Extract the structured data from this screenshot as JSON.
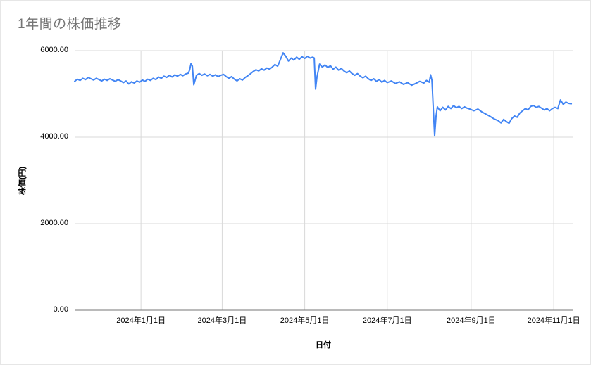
{
  "page": {
    "title": "1年間の株価推移"
  },
  "chart_data": {
    "type": "line",
    "title": "1年間の株価推移",
    "xlabel": "日付",
    "ylabel": "株価(円)",
    "ylim": [
      0,
      6000
    ],
    "y_ticks": [
      0,
      2000,
      4000,
      6000
    ],
    "y_tick_labels": [
      "0.00",
      "2000.00",
      "4000.00",
      "6000.00"
    ],
    "x_range": [
      0,
      368
    ],
    "x_ticks": [
      49,
      109,
      170,
      231,
      293,
      354
    ],
    "x_tick_labels": [
      "2024年1月1日",
      "2024年3月1日",
      "2024年5月1日",
      "2024年7月1日",
      "2024年9月1日",
      "2024年11月1日"
    ],
    "grid": true,
    "legend": "none",
    "line_color": "#4285f4",
    "grid_color": "#d9d9d9",
    "baseline_color": "#757575",
    "series": [
      {
        "name": "株価",
        "points": [
          [
            0,
            5290
          ],
          [
            2,
            5340
          ],
          [
            4,
            5310
          ],
          [
            6,
            5360
          ],
          [
            8,
            5330
          ],
          [
            10,
            5380
          ],
          [
            12,
            5350
          ],
          [
            14,
            5320
          ],
          [
            16,
            5360
          ],
          [
            18,
            5330
          ],
          [
            20,
            5300
          ],
          [
            22,
            5340
          ],
          [
            24,
            5310
          ],
          [
            26,
            5350
          ],
          [
            28,
            5320
          ],
          [
            30,
            5290
          ],
          [
            32,
            5330
          ],
          [
            34,
            5300
          ],
          [
            36,
            5260
          ],
          [
            38,
            5300
          ],
          [
            40,
            5230
          ],
          [
            42,
            5280
          ],
          [
            44,
            5250
          ],
          [
            46,
            5300
          ],
          [
            48,
            5270
          ],
          [
            50,
            5320
          ],
          [
            52,
            5290
          ],
          [
            54,
            5340
          ],
          [
            56,
            5310
          ],
          [
            58,
            5360
          ],
          [
            60,
            5330
          ],
          [
            62,
            5390
          ],
          [
            64,
            5360
          ],
          [
            66,
            5410
          ],
          [
            68,
            5380
          ],
          [
            70,
            5430
          ],
          [
            72,
            5390
          ],
          [
            74,
            5440
          ],
          [
            76,
            5410
          ],
          [
            78,
            5450
          ],
          [
            80,
            5420
          ],
          [
            82,
            5460
          ],
          [
            84,
            5480
          ],
          [
            85,
            5560
          ],
          [
            86,
            5700
          ],
          [
            87,
            5640
          ],
          [
            88,
            5210
          ],
          [
            90,
            5430
          ],
          [
            92,
            5470
          ],
          [
            94,
            5430
          ],
          [
            96,
            5460
          ],
          [
            98,
            5420
          ],
          [
            100,
            5450
          ],
          [
            102,
            5410
          ],
          [
            104,
            5440
          ],
          [
            106,
            5400
          ],
          [
            108,
            5430
          ],
          [
            110,
            5450
          ],
          [
            112,
            5400
          ],
          [
            114,
            5360
          ],
          [
            116,
            5400
          ],
          [
            118,
            5340
          ],
          [
            120,
            5300
          ],
          [
            122,
            5350
          ],
          [
            124,
            5320
          ],
          [
            126,
            5380
          ],
          [
            128,
            5420
          ],
          [
            130,
            5470
          ],
          [
            132,
            5520
          ],
          [
            134,
            5560
          ],
          [
            136,
            5530
          ],
          [
            138,
            5580
          ],
          [
            140,
            5550
          ],
          [
            142,
            5600
          ],
          [
            144,
            5570
          ],
          [
            146,
            5620
          ],
          [
            148,
            5680
          ],
          [
            150,
            5640
          ],
          [
            152,
            5790
          ],
          [
            154,
            5950
          ],
          [
            156,
            5870
          ],
          [
            158,
            5760
          ],
          [
            160,
            5830
          ],
          [
            162,
            5780
          ],
          [
            164,
            5850
          ],
          [
            166,
            5800
          ],
          [
            168,
            5860
          ],
          [
            170,
            5820
          ],
          [
            172,
            5870
          ],
          [
            174,
            5830
          ],
          [
            176,
            5850
          ],
          [
            177,
            5830
          ],
          [
            178,
            5110
          ],
          [
            179,
            5380
          ],
          [
            181,
            5690
          ],
          [
            183,
            5620
          ],
          [
            185,
            5670
          ],
          [
            187,
            5610
          ],
          [
            189,
            5650
          ],
          [
            191,
            5570
          ],
          [
            193,
            5620
          ],
          [
            195,
            5550
          ],
          [
            197,
            5590
          ],
          [
            199,
            5530
          ],
          [
            201,
            5490
          ],
          [
            203,
            5530
          ],
          [
            205,
            5470
          ],
          [
            207,
            5430
          ],
          [
            209,
            5470
          ],
          [
            211,
            5410
          ],
          [
            213,
            5370
          ],
          [
            215,
            5410
          ],
          [
            217,
            5350
          ],
          [
            219,
            5310
          ],
          [
            221,
            5350
          ],
          [
            223,
            5290
          ],
          [
            225,
            5330
          ],
          [
            227,
            5270
          ],
          [
            229,
            5310
          ],
          [
            231,
            5260
          ],
          [
            234,
            5300
          ],
          [
            237,
            5240
          ],
          [
            240,
            5280
          ],
          [
            243,
            5220
          ],
          [
            246,
            5260
          ],
          [
            249,
            5200
          ],
          [
            252,
            5240
          ],
          [
            255,
            5290
          ],
          [
            258,
            5250
          ],
          [
            260,
            5310
          ],
          [
            262,
            5270
          ],
          [
            263,
            5440
          ],
          [
            264,
            5310
          ],
          [
            265,
            4660
          ],
          [
            266,
            4030
          ],
          [
            267,
            4480
          ],
          [
            268,
            4700
          ],
          [
            270,
            4610
          ],
          [
            272,
            4690
          ],
          [
            274,
            4630
          ],
          [
            276,
            4710
          ],
          [
            278,
            4660
          ],
          [
            280,
            4730
          ],
          [
            282,
            4680
          ],
          [
            284,
            4710
          ],
          [
            286,
            4660
          ],
          [
            288,
            4700
          ],
          [
            290,
            4670
          ],
          [
            292,
            4650
          ],
          [
            295,
            4610
          ],
          [
            298,
            4650
          ],
          [
            301,
            4580
          ],
          [
            304,
            4530
          ],
          [
            307,
            4480
          ],
          [
            310,
            4420
          ],
          [
            313,
            4380
          ],
          [
            315,
            4330
          ],
          [
            317,
            4410
          ],
          [
            319,
            4360
          ],
          [
            321,
            4320
          ],
          [
            323,
            4430
          ],
          [
            325,
            4490
          ],
          [
            327,
            4460
          ],
          [
            329,
            4560
          ],
          [
            331,
            4610
          ],
          [
            333,
            4660
          ],
          [
            335,
            4630
          ],
          [
            337,
            4710
          ],
          [
            339,
            4730
          ],
          [
            341,
            4690
          ],
          [
            343,
            4710
          ],
          [
            345,
            4670
          ],
          [
            347,
            4630
          ],
          [
            349,
            4660
          ],
          [
            351,
            4610
          ],
          [
            353,
            4660
          ],
          [
            355,
            4690
          ],
          [
            357,
            4660
          ],
          [
            359,
            4860
          ],
          [
            361,
            4760
          ],
          [
            363,
            4810
          ],
          [
            365,
            4780
          ],
          [
            367,
            4770
          ]
        ]
      }
    ]
  }
}
